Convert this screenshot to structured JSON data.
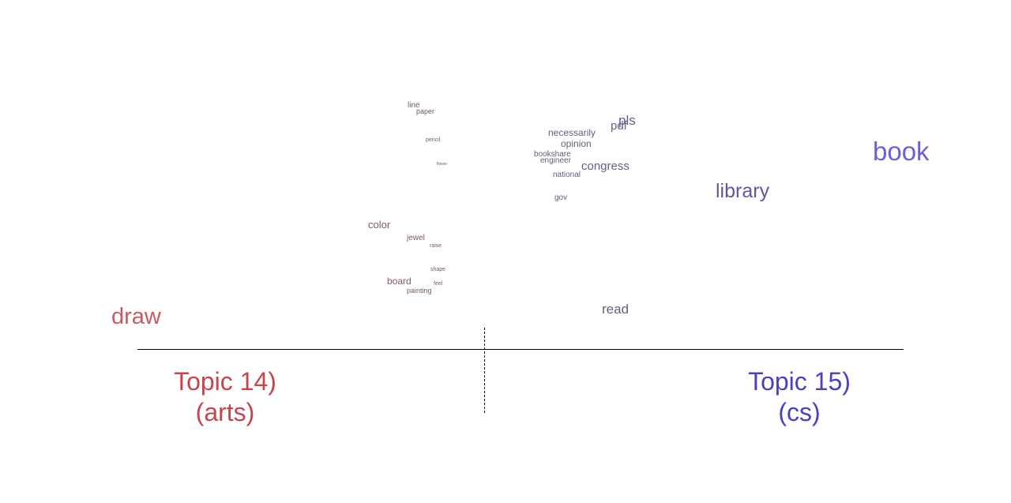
{
  "colors": {
    "arts": "#c8444c",
    "cs": "#4a40c8",
    "axis": "#000000"
  },
  "topics": {
    "left": {
      "line1": "Topic 14)",
      "line2": "(arts)"
    },
    "right": {
      "line1": "Topic 15)",
      "line2": "(cs)"
    }
  },
  "words": [
    {
      "text": "line",
      "color": "#6e5e62"
    },
    {
      "text": "paper",
      "color": "#6e5e62"
    },
    {
      "text": "pencil",
      "color": "#7a5a5e"
    },
    {
      "text": "flower",
      "color": "#7a5a5e"
    },
    {
      "text": "color",
      "color": "#86585c"
    },
    {
      "text": "jewel",
      "color": "#7a5a5e"
    },
    {
      "text": "raise",
      "color": "#7a5a5e"
    },
    {
      "text": "shape",
      "color": "#7a5a5e"
    },
    {
      "text": "board",
      "color": "#86585c"
    },
    {
      "text": "feel",
      "color": "#7a5a5e"
    },
    {
      "text": "painting",
      "color": "#7a5a5e"
    },
    {
      "text": "draw",
      "color": "#c85a60"
    },
    {
      "text": "pls",
      "color": "#66608a"
    },
    {
      "text": "pdf",
      "color": "#66608a"
    },
    {
      "text": "necessarily",
      "color": "#626078"
    },
    {
      "text": "opinion",
      "color": "#626078"
    },
    {
      "text": "bookshare",
      "color": "#626078"
    },
    {
      "text": "engineer",
      "color": "#626078"
    },
    {
      "text": "congress",
      "color": "#66608a"
    },
    {
      "text": "national",
      "color": "#626078"
    },
    {
      "text": "gov",
      "color": "#626078"
    },
    {
      "text": "library",
      "color": "#5e58a8"
    },
    {
      "text": "book",
      "color": "#6a5ee0"
    },
    {
      "text": "read",
      "color": "#66607a"
    }
  ]
}
